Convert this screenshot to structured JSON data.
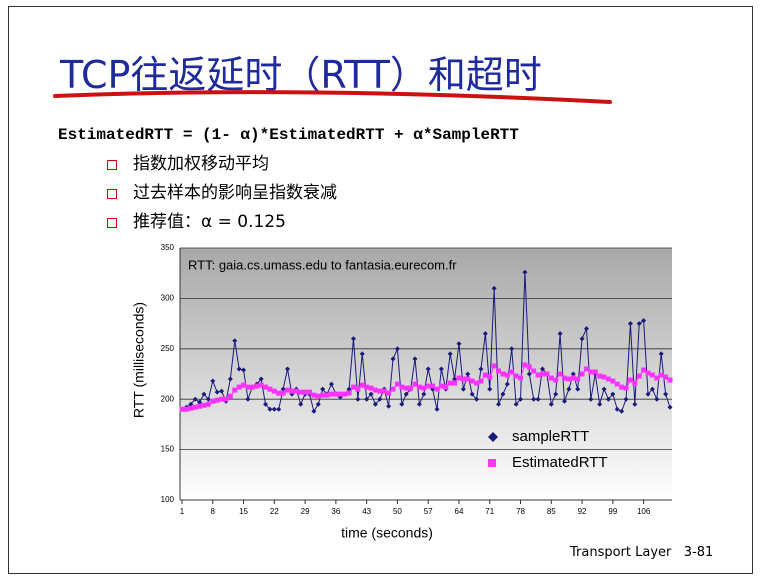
{
  "slide": {
    "title": "TCP往返延时（RTT）和超时",
    "formula": "EstimatedRTT = (1- α)*EstimatedRTT + α*SampleRTT",
    "bullets": [
      "指数加权移动平均",
      "过去样本的影响呈指数衰减",
      "推荐值：α = 0.125"
    ],
    "footer": "Transport Layer",
    "page": "3-81"
  },
  "chart_data": {
    "type": "line",
    "title": "RTT: gaia.cs.umass.edu to fantasia.eurecom.fr",
    "xlabel": "time (seconds)",
    "ylabel": "RTT (milliseconds)",
    "xlim": [
      1,
      112
    ],
    "xticks": [
      1,
      8,
      15,
      22,
      29,
      36,
      43,
      50,
      57,
      64,
      71,
      78,
      85,
      92,
      99,
      106
    ],
    "ylim": [
      100,
      350
    ],
    "yticks": [
      100,
      150,
      200,
      250,
      300,
      350
    ],
    "grid": true,
    "legend": "lower right",
    "x": [
      1,
      2,
      3,
      4,
      5,
      6,
      7,
      8,
      9,
      10,
      11,
      12,
      13,
      14,
      15,
      16,
      17,
      18,
      19,
      20,
      21,
      22,
      23,
      24,
      25,
      26,
      27,
      28,
      29,
      30,
      31,
      32,
      33,
      34,
      35,
      36,
      37,
      38,
      39,
      40,
      41,
      42,
      43,
      44,
      45,
      46,
      47,
      48,
      49,
      50,
      51,
      52,
      53,
      54,
      55,
      56,
      57,
      58,
      59,
      60,
      61,
      62,
      63,
      64,
      65,
      66,
      67,
      68,
      69,
      70,
      71,
      72,
      73,
      74,
      75,
      76,
      77,
      78,
      79,
      80,
      81,
      82,
      83,
      84,
      85,
      86,
      87,
      88,
      89,
      90,
      91,
      92,
      93,
      94,
      95,
      96,
      97,
      98,
      99,
      100,
      101,
      102,
      103,
      104,
      105,
      106,
      107,
      108,
      109,
      110,
      111,
      112
    ],
    "series": [
      {
        "name": "sampleRTT",
        "color": "#1a1a7a",
        "marker": "diamond",
        "values": [
          190,
          192,
          195,
          200,
          197,
          205,
          200,
          218,
          207,
          208,
          198,
          220,
          258,
          230,
          229,
          200,
          212,
          215,
          220,
          195,
          190,
          190,
          190,
          210,
          230,
          205,
          210,
          195,
          205,
          205,
          188,
          195,
          210,
          205,
          215,
          205,
          202,
          205,
          210,
          260,
          200,
          245,
          200,
          205,
          195,
          200,
          210,
          193,
          240,
          250,
          195,
          205,
          210,
          240,
          195,
          205,
          230,
          210,
          190,
          230,
          210,
          245,
          220,
          255,
          210,
          225,
          205,
          200,
          230,
          265,
          210,
          310,
          195,
          205,
          215,
          250,
          195,
          200,
          326,
          225,
          200,
          200,
          230,
          225,
          195,
          205,
          265,
          198,
          210,
          225,
          210,
          260,
          270,
          200,
          225,
          195,
          210,
          200,
          205,
          190,
          188,
          200,
          275,
          195,
          275,
          278,
          205,
          210,
          200,
          245,
          205,
          192
        ]
      },
      {
        "name": "EstimatedRTT",
        "color": "#ff33ff",
        "marker": "square",
        "values": [
          190,
          190,
          191,
          192,
          193,
          194,
          195,
          198,
          199,
          200,
          200,
          203,
          209,
          212,
          214,
          212,
          212,
          213,
          214,
          212,
          210,
          208,
          206,
          206,
          209,
          208,
          208,
          207,
          207,
          207,
          204,
          203,
          204,
          204,
          205,
          205,
          205,
          205,
          206,
          212,
          210,
          214,
          212,
          211,
          209,
          208,
          208,
          206,
          210,
          215,
          212,
          211,
          211,
          215,
          212,
          211,
          213,
          213,
          210,
          213,
          212,
          216,
          216,
          221,
          220,
          220,
          218,
          216,
          218,
          224,
          222,
          233,
          228,
          225,
          224,
          227,
          223,
          221,
          234,
          232,
          228,
          224,
          225,
          225,
          221,
          219,
          225,
          221,
          220,
          221,
          220,
          225,
          230,
          227,
          227,
          223,
          222,
          220,
          218,
          215,
          212,
          211,
          219,
          216,
          223,
          229,
          226,
          224,
          221,
          224,
          222,
          219
        ]
      }
    ]
  }
}
